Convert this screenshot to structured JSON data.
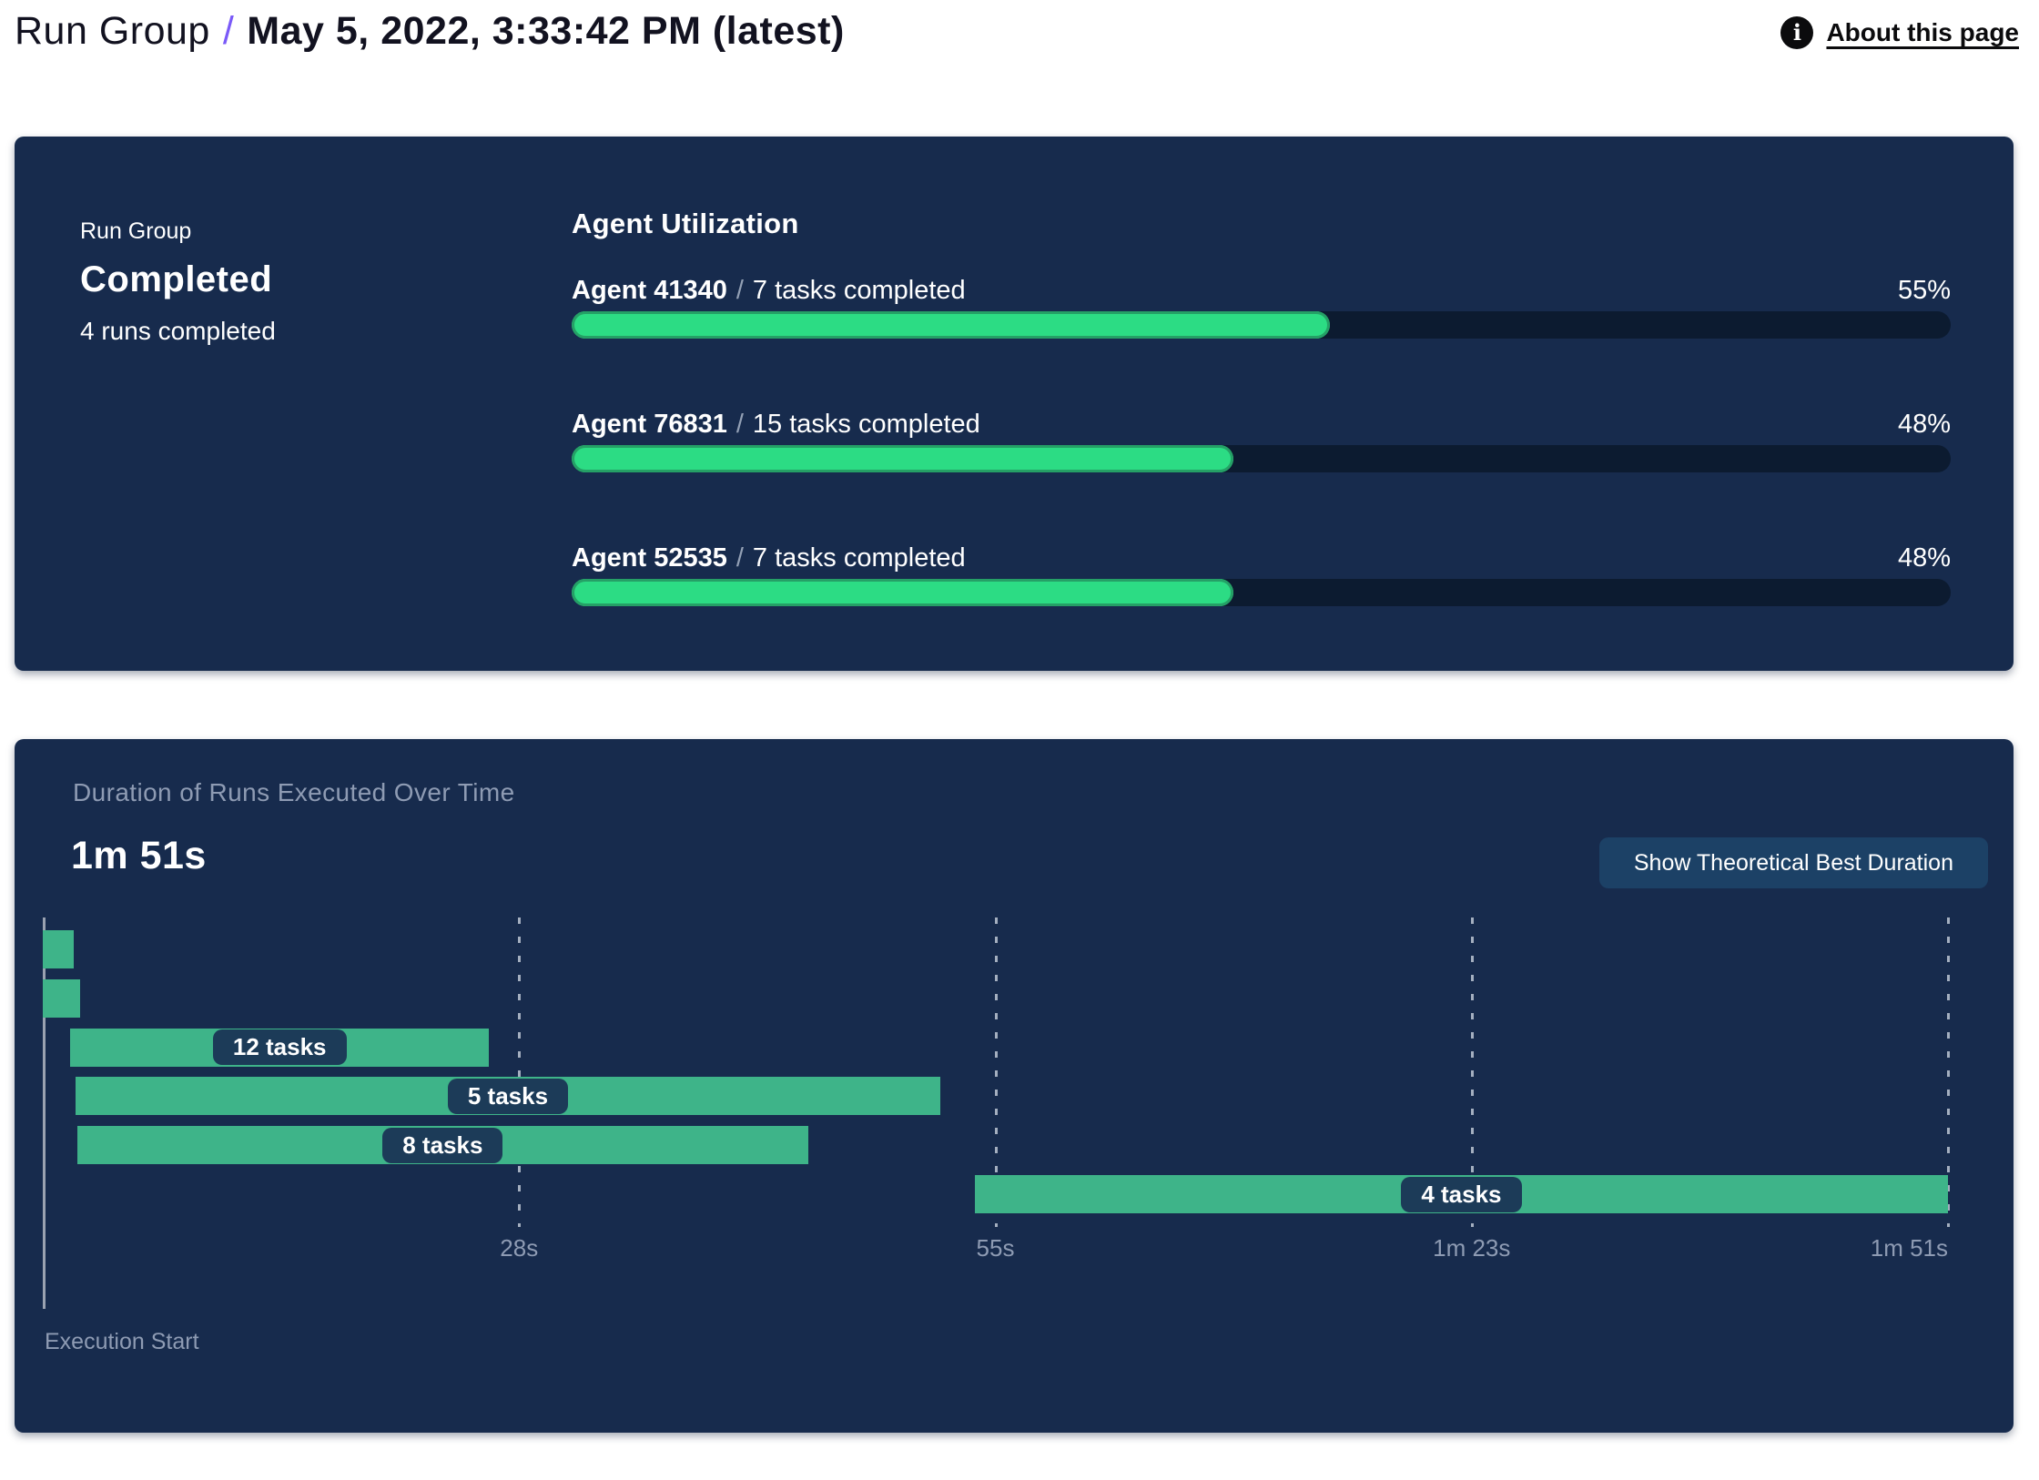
{
  "header": {
    "breadcrumb_root": "Run Group",
    "breadcrumb_separator": "/",
    "title": "May 5, 2022, 3:33:42 PM (latest)",
    "about_link": "About this page",
    "info_icon_glyph": "i"
  },
  "run_group_summary": {
    "label": "Run Group",
    "status": "Completed",
    "runs_completed": "4 runs completed"
  },
  "agent_utilization": {
    "title": "Agent Utilization",
    "separator": "/",
    "rows": [
      {
        "agent": "Agent 41340",
        "tasks": "7 tasks completed",
        "percent": 55,
        "percent_label": "55%"
      },
      {
        "agent": "Agent 76831",
        "tasks": "15 tasks completed",
        "percent": 48,
        "percent_label": "48%"
      },
      {
        "agent": "Agent 52535",
        "tasks": "7 tasks completed",
        "percent": 48,
        "percent_label": "48%"
      }
    ]
  },
  "duration_panel": {
    "title": "Duration of Runs Executed Over Time",
    "total_duration": "1m 51s",
    "button_label": "Show Theoretical Best Duration",
    "axis_caption": "Execution Start"
  },
  "chart_data": {
    "type": "bar",
    "subtype": "gantt-timeline",
    "title": "Duration of Runs Executed Over Time",
    "x_unit": "seconds",
    "xlim": [
      0,
      111
    ],
    "grid": "dashed-vertical",
    "x_ticks": [
      {
        "value": 27.75,
        "label": "28s"
      },
      {
        "value": 55.5,
        "label": "55s"
      },
      {
        "value": 83.25,
        "label": "1m 23s"
      },
      {
        "value": 111,
        "label": "1m 51s"
      }
    ],
    "runs": [
      {
        "row": 0,
        "start_s": 0,
        "end_s": 1.8,
        "label": null
      },
      {
        "row": 1,
        "start_s": 0,
        "end_s": 2.2,
        "label": null
      },
      {
        "row": 2,
        "start_s": 1.6,
        "end_s": 26.0,
        "label": "12 tasks"
      },
      {
        "row": 3,
        "start_s": 1.9,
        "end_s": 52.3,
        "label": "5 tasks"
      },
      {
        "row": 4,
        "start_s": 2.0,
        "end_s": 44.6,
        "label": "8 tasks"
      },
      {
        "row": 5,
        "start_s": 54.3,
        "end_s": 111,
        "label": "4 tasks"
      }
    ],
    "total_label": "1m 51s",
    "baseline_label": "Execution Start"
  },
  "colors": {
    "panel_background": "#172B4D",
    "progress_track": "#0C1B30",
    "progress_fill": "#2CDC84",
    "progress_fill_ring": "#25A066",
    "gantt_bar": "#3EB489",
    "task_pill_background": "#1C3B58",
    "button_background": "#1C4166",
    "muted_text": "#8E9BB3",
    "breadcrumb_separator": "#7A5AF8",
    "page_background": "#FFFFFF"
  }
}
